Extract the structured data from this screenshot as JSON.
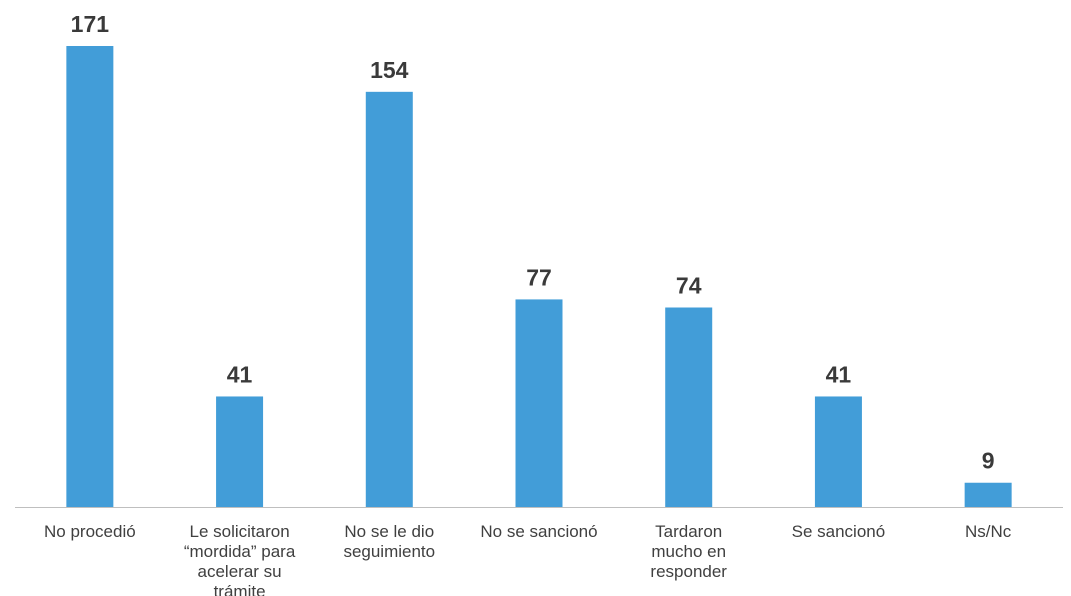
{
  "chart_data": {
    "type": "bar",
    "categories": [
      "No procedió",
      "Le solicitaron “mordida” para acelerar su trámite",
      "No se le dio seguimiento",
      "No se sancionó",
      "Tardaron mucho en responder",
      "Se sancionó",
      "Ns/Nc"
    ],
    "category_lines": [
      [
        "No procedió"
      ],
      [
        "Le solicitaron",
        "“mordida” para",
        "acelerar su",
        "trámite"
      ],
      [
        "No se le dio",
        "seguimiento"
      ],
      [
        "No se sancionó"
      ],
      [
        "Tardaron",
        "mucho en",
        "responder"
      ],
      [
        "Se sancionó"
      ],
      [
        "Ns/Nc"
      ]
    ],
    "values": [
      171,
      41,
      154,
      77,
      74,
      41,
      9
    ],
    "title": "",
    "xlabel": "",
    "ylabel": "",
    "ylim": [
      0,
      171
    ],
    "grid": false,
    "legend": "none",
    "data_labels": true,
    "bar_color": "#429DD8",
    "axis_color": "#BFBFBF"
  }
}
